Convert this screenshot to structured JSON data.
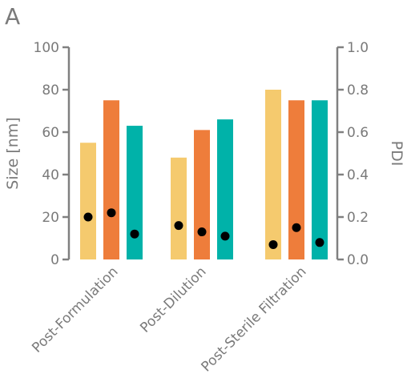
{
  "chart_data": {
    "type": "bar",
    "panel_label": "A",
    "categories": [
      "Post-Formulation",
      "Post-Dilution",
      "Post-Sterile Filtration"
    ],
    "series": [
      {
        "values": [
          55,
          48,
          80
        ],
        "color": "#F5CA6E"
      },
      {
        "values": [
          75,
          61,
          75
        ],
        "color": "#EE7D3B"
      },
      {
        "values": [
          63,
          66,
          75
        ],
        "color": "#00B2A9"
      }
    ],
    "pdi": {
      "values": [
        [
          0.2,
          0.22,
          0.12
        ],
        [
          0.16,
          0.13,
          0.11
        ],
        [
          0.07,
          0.15,
          0.08
        ]
      ],
      "color": "#000000"
    },
    "ylabel": "Size [nm]",
    "y2label": "PDI",
    "ylim": [
      0,
      100
    ],
    "y2lim": [
      0.0,
      1.0
    ],
    "yticks": [
      "0",
      "20",
      "40",
      "60",
      "80",
      "100"
    ],
    "y2ticks": [
      "0.0",
      "0.2",
      "0.4",
      "0.6",
      "0.8",
      "1.0"
    ],
    "grid": false,
    "legend": "none",
    "axis_color": "#808080"
  }
}
